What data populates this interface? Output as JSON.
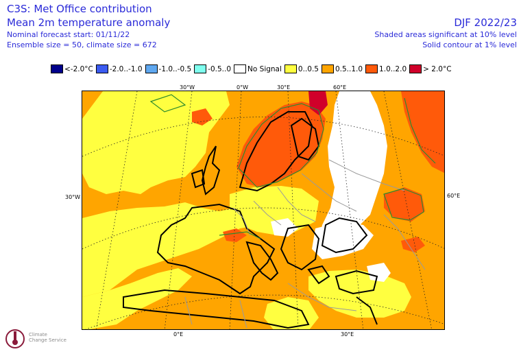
{
  "header": {
    "title_line1": "C3S: Met Office contribution",
    "title_line2": "Mean 2m temperature anomaly",
    "forecast_start": "Nominal forecast start: 01/11/22",
    "ensemble": "Ensemble size = 50, climate size = 672",
    "season": "DJF 2022/23",
    "shading_note": "Shaded areas significant at 10% level",
    "contour_note": "Solid contour at 1% level"
  },
  "legend": [
    {
      "label": "<-2.0°C",
      "color": "#00008b"
    },
    {
      "label": "-2.0..-1.0",
      "color": "#3b5bf0"
    },
    {
      "label": "-1.0..-0.5",
      "color": "#5fa8f0"
    },
    {
      "label": "-0.5..0",
      "color": "#7fffee"
    },
    {
      "label": "No Signal",
      "color": "#ffffff"
    },
    {
      "label": "0..0.5",
      "color": "#ffff40"
    },
    {
      "label": "0.5..1.0",
      "color": "#ffa500"
    },
    {
      "label": "1.0..2.0",
      "color": "#ff5a0a"
    },
    {
      "label": "> 2.0°C",
      "color": "#d0002a"
    }
  ],
  "axes": {
    "lon_30w_top": "30°W",
    "lon_0w_top": "0°W",
    "lon_30e_top": "30°E",
    "lon_60e_top": "60°E",
    "left_30w": "30°W",
    "right_60e": "60°E",
    "bottom_0e": "0°E",
    "bottom_30e": "30°E"
  },
  "logo": {
    "line1": "Climate",
    "line2": "Change Service"
  }
}
